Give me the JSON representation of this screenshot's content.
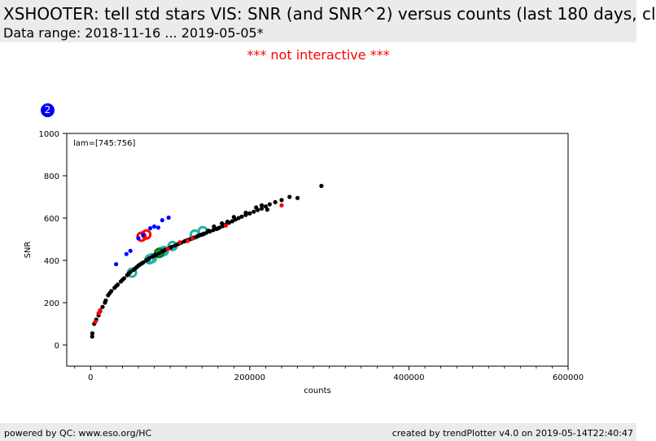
{
  "header": {
    "title": "XSHOOTER: tell std stars VIS: SNR (and SNR^2) versus counts (last 180 days, cl",
    "subtitle": "Data range: 2018-11-16 ... 2019-05-05*"
  },
  "notice": "*** not interactive ***",
  "badge": "2",
  "footer": {
    "left": "powered by QC: www.eso.org/HC",
    "right": "created by trendPlotter v4.0 on 2019-05-14T22:40:47"
  },
  "colors": {
    "default": "#000000",
    "red": "#ff0000",
    "blue": "#0000ff",
    "highlight_cyan": "#20b2aa",
    "highlight_red": "#ff0000",
    "highlight_green": "#008000"
  },
  "chart_data": {
    "type": "scatter",
    "annotation": "lam=[745:756]",
    "xlabel": "counts",
    "ylabel": "SNR",
    "xlim": [
      -30000,
      600000
    ],
    "ylim": [
      -100,
      1000
    ],
    "xticks": [
      0,
      200000,
      400000,
      600000
    ],
    "xtick_labels": [
      "0",
      "200000",
      "400000",
      "600000"
    ],
    "yticks": [
      0,
      200,
      400,
      600,
      800,
      1000
    ],
    "ytick_labels": [
      "0",
      "200",
      "400",
      "600",
      "800",
      "1000"
    ],
    "grid": false,
    "series": [
      {
        "color": "black",
        "points": [
          [
            2000,
            40
          ],
          [
            2200,
            55
          ],
          [
            4500,
            100
          ],
          [
            7000,
            120
          ],
          [
            12000,
            160
          ],
          [
            15000,
            180
          ],
          [
            19000,
            210
          ],
          [
            22000,
            235
          ],
          [
            26000,
            255
          ],
          [
            30000,
            270
          ],
          [
            34000,
            285
          ],
          [
            38000,
            300
          ],
          [
            42000,
            315
          ],
          [
            46000,
            330
          ],
          [
            50000,
            345
          ],
          [
            54000,
            355
          ],
          [
            58000,
            368
          ],
          [
            62000,
            380
          ],
          [
            66000,
            390
          ],
          [
            70000,
            400
          ],
          [
            74000,
            410
          ],
          [
            78000,
            418
          ],
          [
            82000,
            426
          ],
          [
            86000,
            434
          ],
          [
            90000,
            442
          ],
          [
            94000,
            450
          ],
          [
            98000,
            457
          ],
          [
            102000,
            464
          ],
          [
            106000,
            470
          ],
          [
            110000,
            477
          ],
          [
            114000,
            484
          ],
          [
            118000,
            490
          ],
          [
            122000,
            496
          ],
          [
            126000,
            502
          ],
          [
            130000,
            508
          ],
          [
            134000,
            514
          ],
          [
            138000,
            520
          ],
          [
            142000,
            526
          ],
          [
            146000,
            532
          ],
          [
            150000,
            537
          ],
          [
            154000,
            543
          ],
          [
            158000,
            548
          ],
          [
            162000,
            555
          ],
          [
            166000,
            562
          ],
          [
            170000,
            570
          ],
          [
            174000,
            578
          ],
          [
            178000,
            585
          ],
          [
            182000,
            593
          ],
          [
            186000,
            600
          ],
          [
            190000,
            607
          ],
          [
            195000,
            615
          ],
          [
            200000,
            622
          ],
          [
            205000,
            630
          ],
          [
            210000,
            638
          ],
          [
            215000,
            645
          ],
          [
            220000,
            655
          ],
          [
            225000,
            665
          ],
          [
            232000,
            675
          ],
          [
            240000,
            685
          ],
          [
            250000,
            700
          ],
          [
            260000,
            695
          ],
          [
            290000,
            752
          ],
          [
            60000,
            375
          ],
          [
            80000,
            423
          ],
          [
            100000,
            460
          ],
          [
            120000,
            493
          ],
          [
            140000,
            522
          ],
          [
            160000,
            551
          ],
          [
            165000,
            575
          ],
          [
            172000,
            583
          ],
          [
            180000,
            605
          ],
          [
            195000,
            625
          ],
          [
            215000,
            660
          ],
          [
            222000,
            640
          ],
          [
            208000,
            650
          ],
          [
            155000,
            560
          ],
          [
            148000,
            540
          ],
          [
            136000,
            517
          ],
          [
            125000,
            500
          ],
          [
            112000,
            482
          ],
          [
            92000,
            446
          ],
          [
            72000,
            405
          ],
          [
            64000,
            385
          ],
          [
            56000,
            362
          ],
          [
            48000,
            338
          ],
          [
            40000,
            308
          ],
          [
            32000,
            278
          ],
          [
            24000,
            245
          ],
          [
            18000,
            200
          ],
          [
            10000,
            140
          ]
        ]
      },
      {
        "color": "red",
        "points": [
          [
            10000,
            150
          ],
          [
            12000,
            165
          ],
          [
            6000,
            110
          ],
          [
            112000,
            485
          ],
          [
            122000,
            492
          ],
          [
            170000,
            565
          ],
          [
            240000,
            660
          ],
          [
            128000,
            503
          ],
          [
            97000,
            455
          ]
        ]
      },
      {
        "color": "blue",
        "points": [
          [
            32000,
            382
          ],
          [
            45000,
            430
          ],
          [
            50000,
            445
          ],
          [
            60000,
            505
          ],
          [
            66000,
            520
          ],
          [
            75000,
            552
          ],
          [
            80000,
            560
          ],
          [
            85000,
            555
          ],
          [
            90000,
            590
          ],
          [
            98000,
            602
          ]
        ]
      }
    ],
    "highlights": [
      {
        "x": 52000,
        "y": 342,
        "color": "cyan"
      },
      {
        "x": 74000,
        "y": 405,
        "color": "cyan"
      },
      {
        "x": 77000,
        "y": 410,
        "color": "cyan"
      },
      {
        "x": 88000,
        "y": 438,
        "color": "cyan"
      },
      {
        "x": 92000,
        "y": 444,
        "color": "cyan"
      },
      {
        "x": 103000,
        "y": 468,
        "color": "cyan"
      },
      {
        "x": 131000,
        "y": 522,
        "color": "cyan"
      },
      {
        "x": 141000,
        "y": 538,
        "color": "cyan"
      },
      {
        "x": 64000,
        "y": 512,
        "color": "red"
      },
      {
        "x": 70000,
        "y": 522,
        "color": "red"
      },
      {
        "x": 86000,
        "y": 435,
        "color": "green"
      }
    ]
  }
}
